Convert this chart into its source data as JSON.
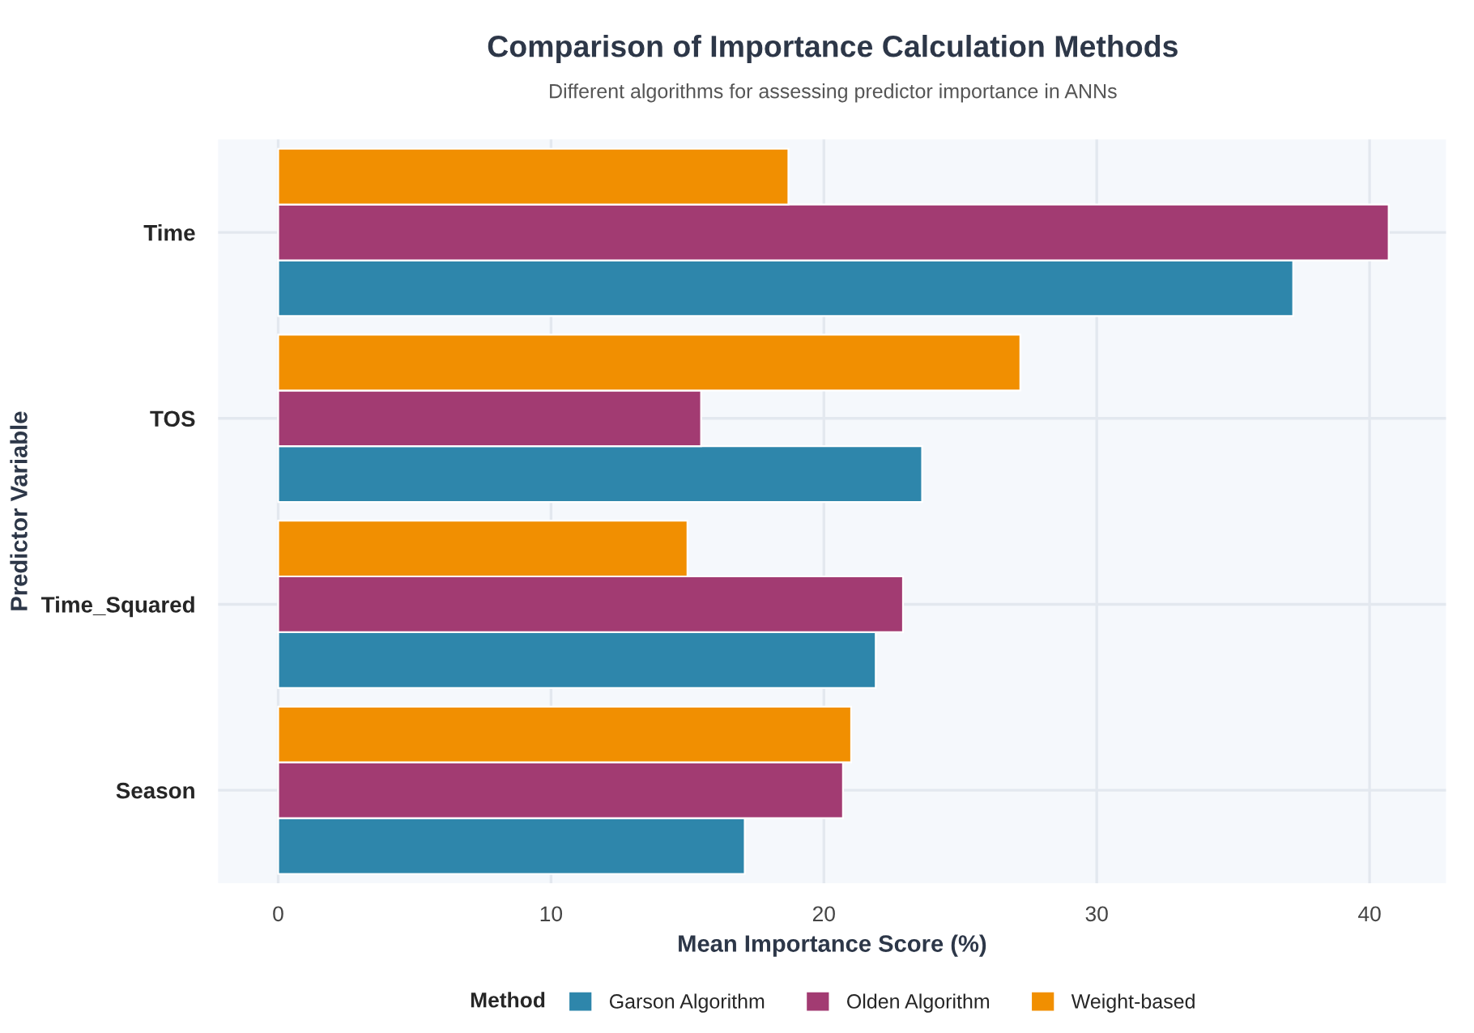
{
  "chart_data": {
    "type": "bar",
    "orientation": "horizontal",
    "title": "Comparison of Importance Calculation Methods",
    "subtitle": "Different algorithms for assessing predictor importance in ANNs",
    "xlabel": "Mean Importance Score (%)",
    "ylabel": "Predictor Variable",
    "legend_title": "Method",
    "categories": [
      "Time",
      "TOS",
      "Time_Squared",
      "Season"
    ],
    "series": [
      {
        "name": "Garson Algorithm",
        "color": "#2e86ab",
        "values": [
          37.2,
          23.6,
          21.9,
          17.1
        ]
      },
      {
        "name": "Olden Algorithm",
        "color": "#a23b72",
        "values": [
          40.7,
          15.5,
          22.9,
          20.7
        ]
      },
      {
        "name": "Weight-based",
        "color": "#f18f01",
        "values": [
          18.7,
          27.2,
          15.0,
          21.0
        ]
      }
    ],
    "xlim": [
      -2.2,
      42.8
    ],
    "xticks": [
      0,
      10,
      20,
      30,
      40
    ],
    "grid": true,
    "legend": "bottom"
  }
}
